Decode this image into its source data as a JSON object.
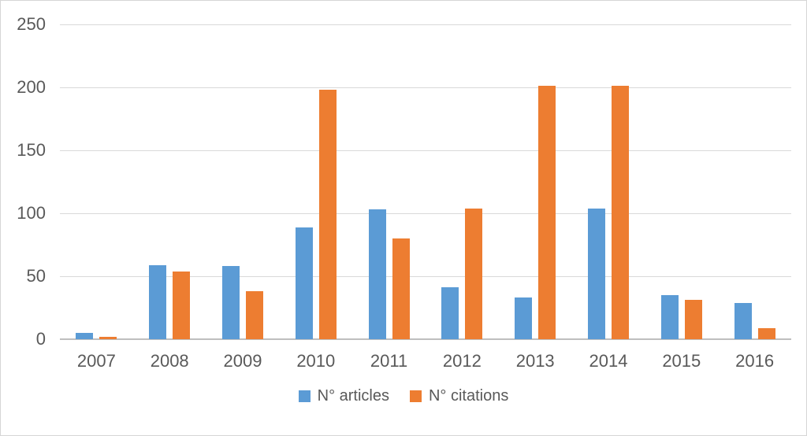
{
  "chart_data": {
    "type": "bar",
    "title": "",
    "xlabel": "",
    "ylabel": "",
    "categories": [
      "2007",
      "2008",
      "2009",
      "2010",
      "2011",
      "2012",
      "2013",
      "2014",
      "2015",
      "2016"
    ],
    "series": [
      {
        "name": "N° articles",
        "color": "#5B9BD5",
        "values": [
          5,
          59,
          58,
          89,
          103,
          41,
          33,
          104,
          35,
          29
        ]
      },
      {
        "name": "N° citations",
        "color": "#ED7D31",
        "values": [
          2,
          54,
          38,
          198,
          80,
          104,
          201,
          201,
          31,
          9
        ]
      }
    ],
    "ylim": [
      0,
      250
    ],
    "yticks": [
      0,
      50,
      100,
      150,
      200,
      250
    ],
    "grid": true,
    "legend_position": "bottom"
  },
  "styles": {
    "background": "#FFFFFF",
    "frame_border_color": "#D6D6D6",
    "gridline_color": "#D9D9D9",
    "axis_line_color": "#BFBFBF",
    "tick_label_color": "#595959",
    "legend_text_color": "#595959"
  }
}
